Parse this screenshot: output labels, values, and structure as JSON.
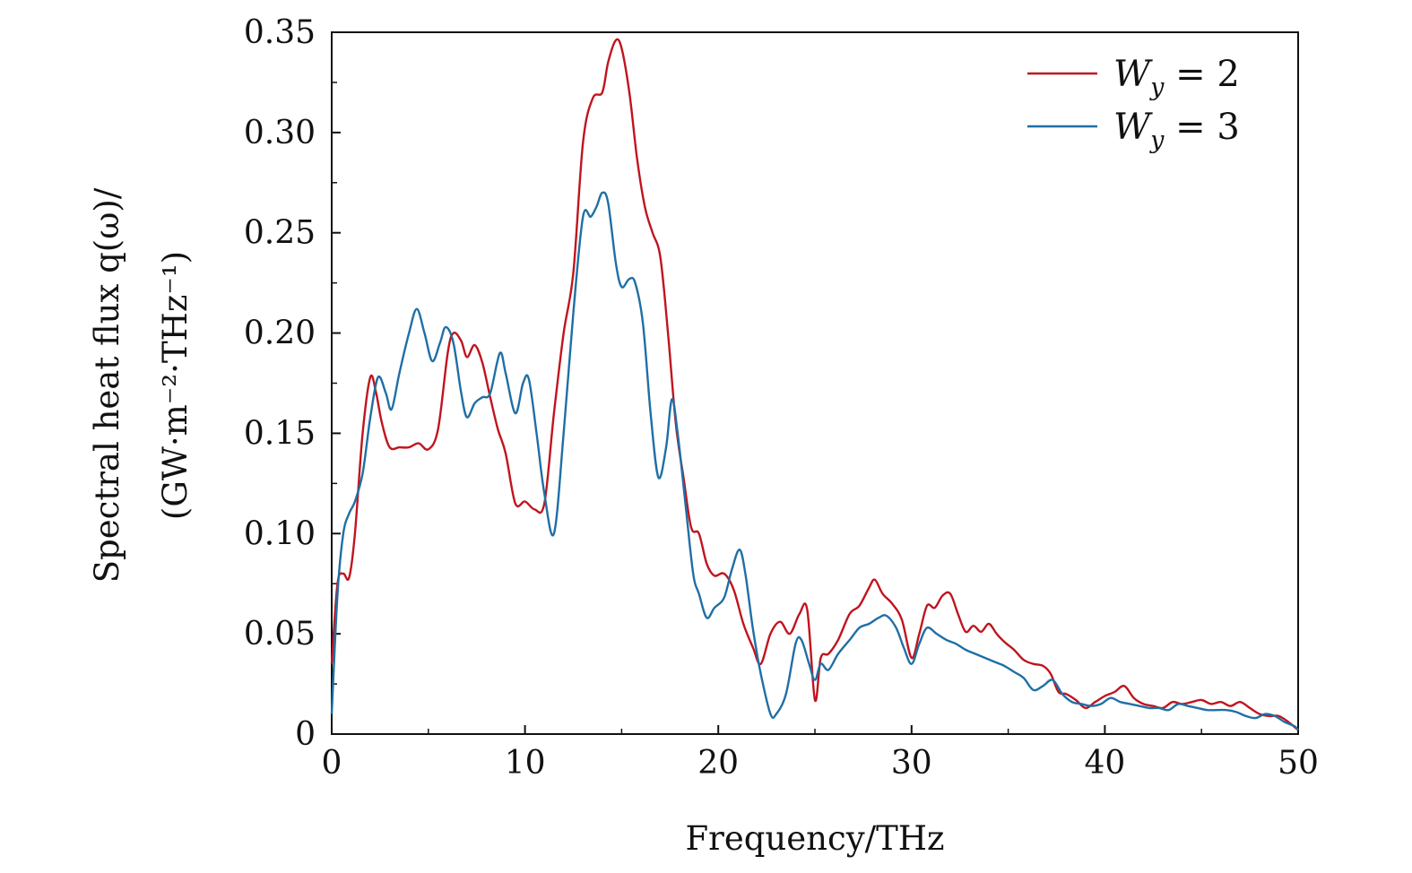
{
  "chart_data": {
    "type": "line",
    "xlabel": "Frequency/THz",
    "ylabel_line1": "Spectral heat flux q(ω)/",
    "ylabel_line2": "(GW·m⁻²·THz⁻¹)",
    "xlim": [
      0,
      50
    ],
    "ylim": [
      0,
      0.35
    ],
    "xticks": [
      0,
      10,
      20,
      30,
      40,
      50
    ],
    "xtick_labels": [
      "0",
      "10",
      "20",
      "30",
      "40",
      "50"
    ],
    "yticks": [
      0,
      0.05,
      0.1,
      0.15,
      0.2,
      0.25,
      0.3,
      0.35
    ],
    "ytick_labels": [
      "0",
      "0.05",
      "0.10",
      "0.15",
      "0.20",
      "0.25",
      "0.30",
      "0.35"
    ],
    "grid": false,
    "legend_position": "top-right",
    "series": [
      {
        "name": "Wy = 2",
        "legend_main": "W",
        "legend_sub": "y",
        "legend_rest": " = 2",
        "color": "#c0141e",
        "x": [
          0,
          0.3,
          0.6,
          0.9,
          1.2,
          1.6,
          2.0,
          2.3,
          2.6,
          3.0,
          3.5,
          4.0,
          4.5,
          5.0,
          5.5,
          6.0,
          6.3,
          6.7,
          7.0,
          7.4,
          7.8,
          8.2,
          8.6,
          9.0,
          9.5,
          10.0,
          10.5,
          11.0,
          11.5,
          12.0,
          12.5,
          13.0,
          13.5,
          14.0,
          14.3,
          14.7,
          15.0,
          15.4,
          15.8,
          16.2,
          16.6,
          17.0,
          17.4,
          17.8,
          18.2,
          18.6,
          19.0,
          19.4,
          19.8,
          20.3,
          20.8,
          21.3,
          21.8,
          22.2,
          22.7,
          23.2,
          23.7,
          24.2,
          24.6,
          25.0,
          25.3,
          25.7,
          26.2,
          26.8,
          27.3,
          27.8,
          28.1,
          28.5,
          29.0,
          29.5,
          30.0,
          30.4,
          30.8,
          31.2,
          31.6,
          32.0,
          32.4,
          32.8,
          33.2,
          33.6,
          34.0,
          34.4,
          34.8,
          35.3,
          35.8,
          36.3,
          36.8,
          37.2,
          37.6,
          38.0,
          38.5,
          39.0,
          39.5,
          40.0,
          40.5,
          41.0,
          41.5,
          42.0,
          42.5,
          43.0,
          43.5,
          44.0,
          44.5,
          45.0,
          45.5,
          46.0,
          46.5,
          47.0,
          47.5,
          48.0,
          48.5,
          49.0,
          49.5,
          50.0
        ],
        "values": [
          0.035,
          0.075,
          0.08,
          0.078,
          0.1,
          0.15,
          0.178,
          0.17,
          0.155,
          0.143,
          0.143,
          0.143,
          0.145,
          0.142,
          0.152,
          0.19,
          0.2,
          0.196,
          0.188,
          0.194,
          0.185,
          0.168,
          0.152,
          0.14,
          0.115,
          0.116,
          0.112,
          0.115,
          0.16,
          0.2,
          0.23,
          0.295,
          0.317,
          0.32,
          0.335,
          0.346,
          0.342,
          0.32,
          0.287,
          0.263,
          0.25,
          0.238,
          0.2,
          0.155,
          0.128,
          0.103,
          0.1,
          0.085,
          0.079,
          0.08,
          0.072,
          0.055,
          0.043,
          0.035,
          0.05,
          0.056,
          0.05,
          0.06,
          0.062,
          0.017,
          0.038,
          0.04,
          0.047,
          0.06,
          0.064,
          0.073,
          0.077,
          0.07,
          0.065,
          0.057,
          0.038,
          0.05,
          0.064,
          0.063,
          0.069,
          0.07,
          0.06,
          0.051,
          0.054,
          0.051,
          0.055,
          0.05,
          0.046,
          0.042,
          0.037,
          0.035,
          0.034,
          0.03,
          0.021,
          0.02,
          0.017,
          0.013,
          0.016,
          0.019,
          0.021,
          0.024,
          0.018,
          0.015,
          0.014,
          0.013,
          0.016,
          0.015,
          0.016,
          0.017,
          0.015,
          0.016,
          0.014,
          0.016,
          0.013,
          0.01,
          0.009,
          0.009,
          0.006,
          0.002
        ]
      },
      {
        "name": "Wy = 3",
        "legend_main": "W",
        "legend_sub": "y",
        "legend_rest": " = 3",
        "color": "#1f6fa5",
        "x": [
          0,
          0.3,
          0.6,
          0.9,
          1.2,
          1.6,
          2.0,
          2.4,
          2.8,
          3.1,
          3.5,
          4.0,
          4.4,
          4.8,
          5.2,
          5.6,
          5.9,
          6.3,
          6.7,
          7.0,
          7.4,
          7.8,
          8.2,
          8.7,
          9.0,
          9.5,
          9.9,
          10.2,
          10.6,
          11.0,
          11.5,
          12.0,
          12.5,
          13.0,
          13.4,
          13.7,
          14.0,
          14.3,
          14.7,
          15.0,
          15.4,
          15.7,
          16.1,
          16.5,
          16.9,
          17.3,
          17.6,
          17.9,
          18.3,
          18.7,
          19.0,
          19.4,
          19.8,
          20.3,
          20.7,
          21.1,
          21.4,
          21.8,
          22.2,
          22.7,
          23.0,
          23.5,
          24.0,
          24.3,
          24.7,
          25.0,
          25.3,
          25.7,
          26.2,
          26.8,
          27.3,
          27.8,
          28.3,
          28.7,
          29.2,
          29.6,
          30.0,
          30.4,
          30.8,
          31.3,
          31.8,
          32.3,
          32.8,
          33.3,
          33.8,
          34.3,
          34.8,
          35.3,
          35.8,
          36.3,
          36.8,
          37.3,
          37.8,
          38.3,
          38.8,
          39.3,
          39.8,
          40.3,
          40.8,
          41.3,
          41.8,
          42.3,
          42.8,
          43.3,
          43.8,
          44.3,
          44.8,
          45.3,
          45.8,
          46.3,
          46.8,
          47.3,
          47.8,
          48.3,
          48.8,
          49.3,
          49.8,
          50.0
        ],
        "values": [
          0.01,
          0.07,
          0.1,
          0.11,
          0.116,
          0.13,
          0.158,
          0.178,
          0.17,
          0.162,
          0.18,
          0.2,
          0.212,
          0.2,
          0.186,
          0.195,
          0.203,
          0.195,
          0.17,
          0.158,
          0.165,
          0.168,
          0.17,
          0.19,
          0.18,
          0.16,
          0.175,
          0.177,
          0.15,
          0.12,
          0.1,
          0.15,
          0.21,
          0.258,
          0.258,
          0.263,
          0.27,
          0.265,
          0.235,
          0.223,
          0.227,
          0.225,
          0.205,
          0.16,
          0.128,
          0.143,
          0.167,
          0.15,
          0.115,
          0.08,
          0.07,
          0.058,
          0.063,
          0.068,
          0.082,
          0.092,
          0.08,
          0.052,
          0.03,
          0.01,
          0.01,
          0.02,
          0.045,
          0.047,
          0.035,
          0.027,
          0.035,
          0.032,
          0.04,
          0.047,
          0.053,
          0.055,
          0.058,
          0.059,
          0.053,
          0.043,
          0.035,
          0.045,
          0.053,
          0.05,
          0.047,
          0.045,
          0.042,
          0.04,
          0.038,
          0.036,
          0.034,
          0.031,
          0.028,
          0.022,
          0.024,
          0.027,
          0.02,
          0.016,
          0.015,
          0.014,
          0.015,
          0.018,
          0.016,
          0.015,
          0.014,
          0.013,
          0.013,
          0.012,
          0.015,
          0.014,
          0.013,
          0.012,
          0.012,
          0.012,
          0.011,
          0.009,
          0.008,
          0.01,
          0.009,
          0.006,
          0.004,
          0.002
        ]
      }
    ]
  }
}
